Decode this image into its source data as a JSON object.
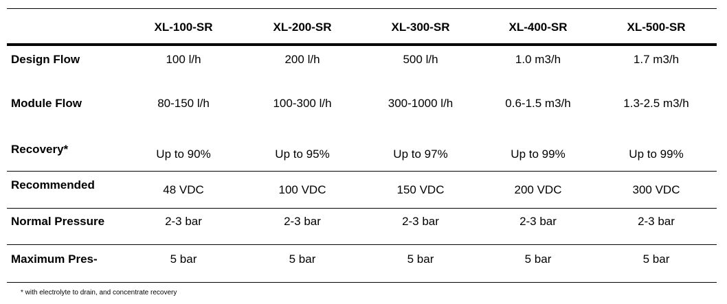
{
  "table": {
    "columns": [
      "XL-100-SR",
      "XL-200-SR",
      "XL-300-SR",
      "XL-400-SR",
      "XL-500-SR"
    ],
    "rows": [
      {
        "label": "Design Flow",
        "cells": [
          "100 l/h",
          "200 l/h",
          "500 l/h",
          "1.0 m3/h",
          "1.7 m3/h"
        ]
      },
      {
        "label": "Module Flow",
        "cells": [
          "80-150 l/h",
          "100-300 l/h",
          "300-1000 l/h",
          "0.6-1.5 m3/h",
          "1.3-2.5 m3/h"
        ]
      },
      {
        "label": "Recovery*",
        "cells": [
          "Up to 90%",
          "Up to 95%",
          "Up to 97%",
          "Up to 99%",
          "Up to 99%"
        ]
      },
      {
        "label": "Recommended",
        "cells": [
          "48 VDC",
          "100 VDC",
          "150 VDC",
          "200 VDC",
          "300 VDC"
        ]
      },
      {
        "label": "Normal Pressure",
        "cells": [
          "2-3 bar",
          "2-3 bar",
          "2-3 bar",
          "2-3 bar",
          "2-3 bar"
        ]
      },
      {
        "label": "Maximum Pres-",
        "cells": [
          "5 bar",
          "5 bar",
          "5 bar",
          "5 bar",
          "5 bar"
        ]
      }
    ]
  },
  "footnote": "* with electrolyte to drain, and concentrate recovery"
}
